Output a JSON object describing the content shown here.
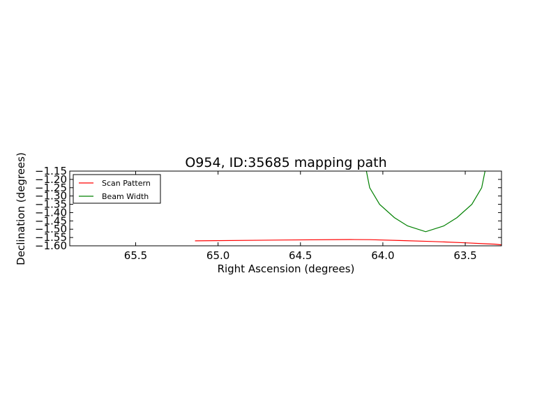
{
  "chart_data": {
    "type": "line",
    "title": "O954, ID:35685 mapping path",
    "xlabel": "Right Ascension (degrees)",
    "ylabel": "Declination (degrees)",
    "xlim": [
      65.9,
      63.28
    ],
    "ylim": [
      -1.6,
      -1.15
    ],
    "x_inverted": true,
    "x_ticks": [
      65.5,
      65.0,
      64.5,
      64.0,
      63.5
    ],
    "x_tick_labels": [
      "65.5",
      "65.0",
      "64.5",
      "64.0",
      "63.5"
    ],
    "y_ticks": [
      -1.15,
      -1.2,
      -1.25,
      -1.3,
      -1.35,
      -1.4,
      -1.45,
      -1.5,
      -1.55,
      -1.6
    ],
    "y_tick_labels": [
      "−1.15",
      "−1.20",
      "−1.25",
      "−1.30",
      "−1.35",
      "−1.40",
      "−1.45",
      "−1.50",
      "−1.55",
      "−1.60"
    ],
    "grid": false,
    "legend_position": "upper-left",
    "series": [
      {
        "name": "Scan Pattern",
        "color": "#ff0000",
        "x": [
          65.14,
          64.6,
          64.2,
          64.08,
          63.9,
          63.7,
          63.5,
          63.35,
          63.32,
          63.3,
          63.28
        ],
        "y": [
          -1.57,
          -1.565,
          -1.562,
          -1.563,
          -1.568,
          -1.574,
          -1.582,
          -1.589,
          -1.59,
          -1.592,
          -1.594
        ]
      },
      {
        "name": "Beam Width",
        "color": "#008000",
        "x": [
          64.1,
          64.08,
          64.02,
          63.93,
          63.85,
          63.74,
          63.63,
          63.55,
          63.46,
          63.4,
          63.38
        ],
        "y": [
          -1.15,
          -1.25,
          -1.35,
          -1.43,
          -1.48,
          -1.515,
          -1.48,
          -1.43,
          -1.35,
          -1.25,
          -1.15
        ]
      }
    ]
  }
}
